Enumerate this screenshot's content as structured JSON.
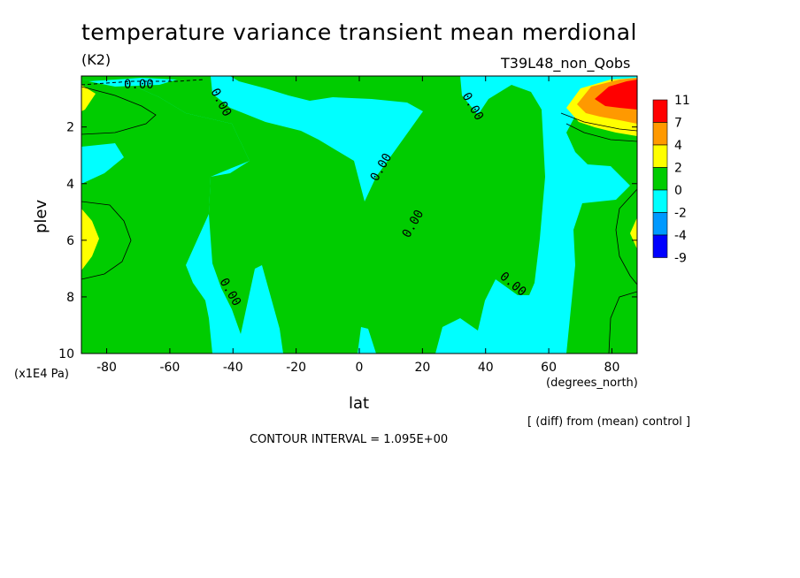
{
  "chart_data": {
    "type": "contour",
    "title": "temperature variance transient mean merdional",
    "units": "(K2)",
    "run_label": "T39L48_non_Qobs",
    "xlabel": "lat",
    "x_units": "(degrees_north)",
    "ylabel": "plev",
    "y_units": "(x1E4 Pa)",
    "xlim": [
      -88,
      88
    ],
    "ylim": [
      10,
      0.2
    ],
    "x_ticks": [
      -80,
      -60,
      -40,
      -20,
      0,
      20,
      40,
      60,
      80
    ],
    "y_ticks": [
      2,
      4,
      6,
      8,
      10
    ],
    "x_tick_labels": [
      "-80",
      "-60",
      "-40",
      "-20",
      "0",
      "20",
      "40",
      "60",
      "80"
    ],
    "y_tick_labels": [
      "2",
      "4",
      "6",
      "8",
      "10"
    ],
    "note": "[ (diff) from (mean) control ]",
    "contour_interval": "CONTOUR INTERVAL = 1.095E+00",
    "contour_label": "0.00",
    "zero_contour_label_positions": [
      {
        "lat": -43,
        "plev": 1.1
      },
      {
        "lat": -41,
        "plev": 7.8
      },
      {
        "lat": 9,
        "plev": 3.7
      },
      {
        "lat": 20,
        "plev": 5.3
      },
      {
        "lat": 35,
        "plev": 1.2
      },
      {
        "lat": 48,
        "plev": 7.5
      },
      {
        "lat": -67,
        "plev": 0.5
      }
    ],
    "colorbar": {
      "levels": [
        "11",
        "7",
        "4",
        "2",
        "0",
        "-2",
        "-4",
        "-9"
      ],
      "colors": [
        "#ff0000",
        "#ff9900",
        "#ffff00",
        "#00cc00",
        "#00ffff",
        "#0099ff",
        "#0000ff"
      ]
    }
  }
}
